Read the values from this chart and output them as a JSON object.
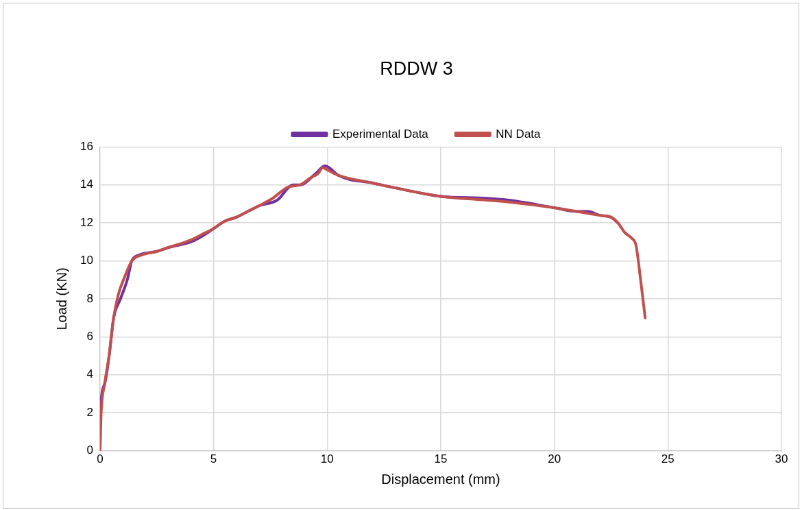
{
  "chart_data": {
    "type": "line",
    "title": "RDDW 3",
    "xlabel": "Displacement (mm)",
    "ylabel": "Load (KN)",
    "xlim": [
      0,
      30
    ],
    "xticks": [
      0,
      5,
      10,
      15,
      20,
      25,
      30
    ],
    "ylim": [
      0,
      16
    ],
    "yticks": [
      0,
      2,
      4,
      6,
      8,
      10,
      12,
      14,
      16
    ],
    "grid": true,
    "legend": "top",
    "marker": "none",
    "line_style": "solid",
    "series": [
      {
        "name": "Experimental Data",
        "color": "#7030a0",
        "x": [
          0,
          0.02,
          0.2,
          0.4,
          0.6,
          0.9,
          1.2,
          1.4,
          1.7,
          2.5,
          3,
          4,
          4.5,
          5,
          5.5,
          6,
          6.5,
          7,
          7.8,
          8.5,
          8.8,
          9.5,
          9.9,
          10.1,
          10.5,
          12,
          14,
          15,
          17,
          18,
          20,
          21,
          21.5,
          22,
          22.5,
          22.8
        ],
        "values": [
          0,
          2,
          3.5,
          5,
          7,
          8,
          9,
          10,
          10.3,
          10.5,
          10.7,
          11,
          11.3,
          11.7,
          12.1,
          12.3,
          12.6,
          12.9,
          13.2,
          14,
          14,
          14.6,
          15,
          14.9,
          14.5,
          14.1,
          13.6,
          13.4,
          13.3,
          13.2,
          12.8,
          12.6,
          12.6,
          12.4,
          12.3,
          12
        ]
      },
      {
        "name": "NN Data",
        "color": "#c0504d",
        "x": [
          0,
          0.05,
          0.2,
          0.4,
          0.6,
          0.8,
          1.1,
          1.4,
          1.8,
          2.5,
          3,
          4,
          4.5,
          5,
          5.5,
          6,
          6.5,
          7,
          7.6,
          8.3,
          8.8,
          9.3,
          9.6,
          9.8,
          10,
          10.5,
          12,
          14,
          15,
          17,
          18,
          20,
          21,
          21.5,
          22,
          22.5,
          22.8,
          23.1,
          23.4,
          23.6,
          23.8,
          24
        ],
        "values": [
          0,
          2,
          3.5,
          5,
          7,
          8.2,
          9.2,
          10,
          10.3,
          10.5,
          10.7,
          11.1,
          11.4,
          11.7,
          12.1,
          12.3,
          12.6,
          12.9,
          13.3,
          13.9,
          14,
          14.4,
          14.6,
          14.9,
          14.8,
          14.5,
          14.1,
          13.6,
          13.4,
          13.2,
          13.1,
          12.8,
          12.6,
          12.5,
          12.4,
          12.3,
          12,
          11.5,
          11.2,
          10.8,
          9,
          7
        ]
      }
    ]
  }
}
